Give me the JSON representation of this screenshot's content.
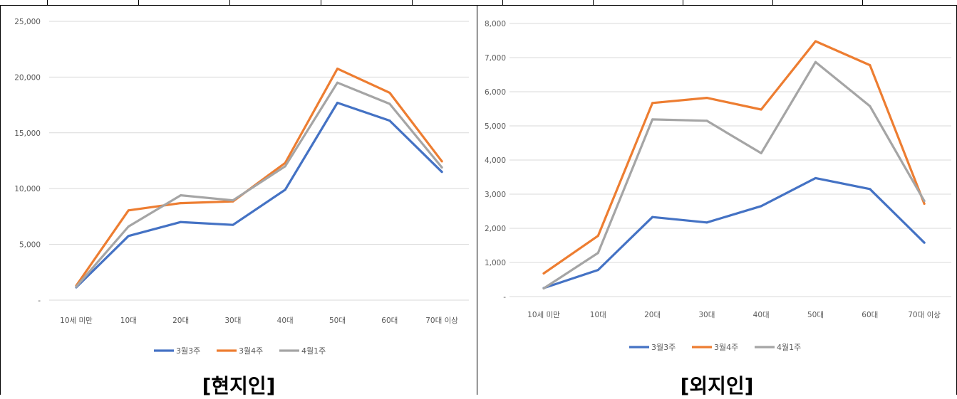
{
  "chart_data": [
    {
      "type": "line",
      "title": "[현지인]",
      "categories": [
        "10세 미만",
        "10대",
        "20대",
        "30대",
        "40대",
        "50대",
        "60대",
        "70대 이상"
      ],
      "ylim": [
        0,
        25000
      ],
      "yticks": [
        "-",
        "5,000",
        "10,000",
        "15,000",
        "20,000",
        "25,000"
      ],
      "grid": true,
      "legend_position": "bottom",
      "series": [
        {
          "name": "3월3주",
          "color": "#4472C4",
          "values": [
            1150,
            5750,
            7000,
            6750,
            9900,
            17700,
            16100,
            11500
          ]
        },
        {
          "name": "3월4주",
          "color": "#ED7D31",
          "values": [
            1300,
            8050,
            8700,
            8850,
            12300,
            20750,
            18600,
            12450
          ]
        },
        {
          "name": "4월1주",
          "color": "#A5A5A5",
          "values": [
            1200,
            6600,
            9400,
            8950,
            12000,
            19500,
            17600,
            11900
          ]
        }
      ]
    },
    {
      "type": "line",
      "title": "[외지인]",
      "categories": [
        "10세 미만",
        "10대",
        "20대",
        "30대",
        "40대",
        "50대",
        "60대",
        "70대 이상"
      ],
      "ylim": [
        0,
        8000
      ],
      "yticks": [
        "-",
        "1,000",
        "2,000",
        "3,000",
        "4,000",
        "5,000",
        "6,000",
        "7,000",
        "8,000"
      ],
      "grid": true,
      "legend_position": "bottom",
      "series": [
        {
          "name": "3월3주",
          "color": "#4472C4",
          "values": [
            250,
            780,
            2330,
            2170,
            2650,
            3470,
            3150,
            1580
          ]
        },
        {
          "name": "3월4주",
          "color": "#ED7D31",
          "values": [
            680,
            1780,
            5670,
            5820,
            5480,
            7480,
            6780,
            2720
          ]
        },
        {
          "name": "4월1주",
          "color": "#A5A5A5",
          "values": [
            240,
            1280,
            5190,
            5150,
            4200,
            6870,
            5580,
            2800
          ]
        }
      ]
    }
  ]
}
